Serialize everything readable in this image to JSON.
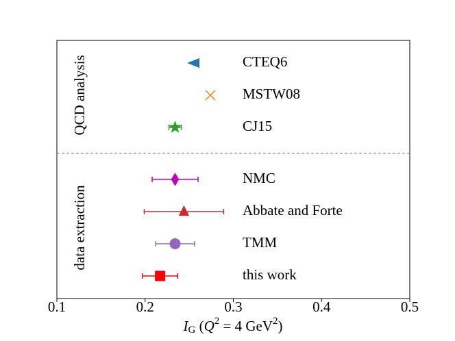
{
  "chart_data": {
    "type": "dot",
    "xlabel": "I_G (Q^2 = 4 GeV^2)",
    "xlim": [
      0.1,
      0.5
    ],
    "xticks": [
      0.1,
      0.2,
      0.3,
      0.4,
      0.5
    ],
    "groups": [
      {
        "label": "QCD analysis",
        "points": [
          {
            "name": "CTEQ6",
            "value": 0.255,
            "error": null,
            "marker": "<",
            "color": "#1f77b4"
          },
          {
            "name": "MSTW08",
            "value": 0.274,
            "error": null,
            "marker": "x",
            "color": "#ff7f0e"
          },
          {
            "name": "CJ15",
            "value": 0.234,
            "error": 0.007,
            "marker": "*",
            "color": "#2ca02c"
          }
        ]
      },
      {
        "label": "data extraction",
        "points": [
          {
            "name": "NMC",
            "value": 0.234,
            "error": 0.026,
            "marker": "d",
            "color": "#c000c0"
          },
          {
            "name": "Abbate and Forte",
            "value": 0.244,
            "error": 0.045,
            "marker": "^",
            "color": "#d62728"
          },
          {
            "name": "TMM",
            "value": 0.234,
            "error": 0.022,
            "marker": "o",
            "color": "#9467bd"
          },
          {
            "name": "this work",
            "value": 0.217,
            "error": 0.02,
            "marker": "s",
            "color": "#ff0000"
          }
        ]
      }
    ]
  }
}
